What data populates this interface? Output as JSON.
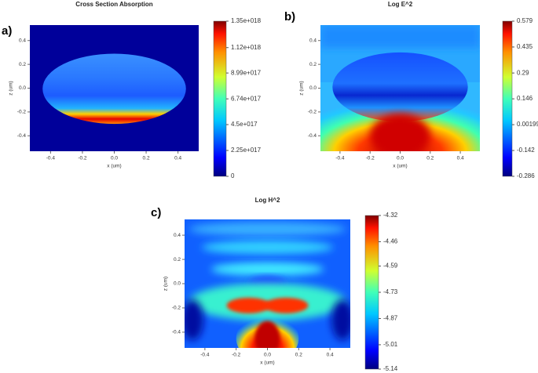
{
  "chart_data": [
    {
      "type": "heatmap",
      "panel_label": "a)",
      "title": "Cross Section Absorption",
      "xlabel": "x (um)",
      "ylabel": "z (um)",
      "xlim": [
        -0.53,
        0.53
      ],
      "ylim": [
        -0.53,
        0.53
      ],
      "xticks": [
        -0.4,
        -0.2,
        {
          "value": 0,
          "label": "0.0"
        },
        0.2,
        0.4
      ],
      "yticks": [
        -0.4,
        -0.2,
        {
          "value": 0,
          "label": "0.0"
        },
        0.2,
        0.4
      ],
      "colorbar": {
        "lim": [
          0,
          1.35e+18
        ],
        "ticks": [
          0,
          {
            "value": 2.25e+17,
            "label": "2.25e+017"
          },
          {
            "value": 4.5e+17,
            "label": "4.5e+017"
          },
          {
            "value": 6.74e+17,
            "label": "6.74e+017"
          },
          {
            "value": 8.99e+17,
            "label": "8.99e+017"
          },
          {
            "value": 1.12e+18,
            "label": "1.12e+018"
          },
          {
            "value": 1.35e+18,
            "label": "1.35e+018"
          }
        ]
      }
    },
    {
      "type": "heatmap",
      "panel_label": "b)",
      "title": "Log E^2",
      "xlabel": "x (um)",
      "ylabel": "z (um)",
      "xlim": [
        -0.53,
        0.53
      ],
      "ylim": [
        -0.53,
        0.53
      ],
      "xticks": [
        -0.4,
        -0.2,
        {
          "value": 0,
          "label": "0.0"
        },
        0.2,
        0.4
      ],
      "yticks": [
        -0.4,
        -0.2,
        {
          "value": 0,
          "label": "0.0"
        },
        0.2,
        0.4
      ],
      "colorbar": {
        "lim": [
          -0.286,
          0.579
        ],
        "ticks": [
          -0.286,
          -0.142,
          0.00199,
          0.146,
          0.29,
          0.435,
          0.579
        ]
      }
    },
    {
      "type": "heatmap",
      "panel_label": "c)",
      "title": "Log H^2",
      "xlabel": "x (um)",
      "ylabel": "z (um)",
      "xlim": [
        -0.53,
        0.53
      ],
      "ylim": [
        -0.53,
        0.53
      ],
      "xticks": [
        -0.4,
        -0.2,
        {
          "value": 0,
          "label": "0.0"
        },
        0.2,
        0.4
      ],
      "yticks": [
        -0.4,
        -0.2,
        {
          "value": 0,
          "label": "0.0"
        },
        0.2,
        0.4
      ],
      "colorbar": {
        "lim": [
          -5.14,
          -4.32
        ],
        "ticks": [
          -5.14,
          -5.01,
          -4.87,
          -4.73,
          -4.59,
          -4.46,
          -4.32
        ]
      }
    }
  ]
}
